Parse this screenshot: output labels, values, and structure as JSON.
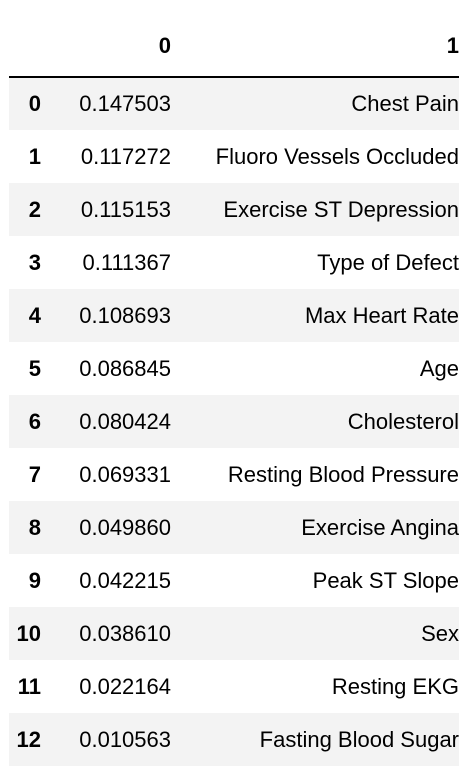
{
  "table": {
    "index_header": "",
    "columns": [
      "0",
      "1"
    ],
    "rows": [
      {
        "index": "0",
        "c0": "0.147503",
        "c1": "Chest Pain"
      },
      {
        "index": "1",
        "c0": "0.117272",
        "c1": "Fluoro Vessels Occluded"
      },
      {
        "index": "2",
        "c0": "0.115153",
        "c1": "Exercise ST Depression"
      },
      {
        "index": "3",
        "c0": "0.111367",
        "c1": "Type of Defect"
      },
      {
        "index": "4",
        "c0": "0.108693",
        "c1": "Max Heart Rate"
      },
      {
        "index": "5",
        "c0": "0.086845",
        "c1": "Age"
      },
      {
        "index": "6",
        "c0": "0.080424",
        "c1": "Cholesterol"
      },
      {
        "index": "7",
        "c0": "0.069331",
        "c1": "Resting Blood Pressure"
      },
      {
        "index": "8",
        "c0": "0.049860",
        "c1": "Exercise Angina"
      },
      {
        "index": "9",
        "c0": "0.042215",
        "c1": "Peak ST Slope"
      },
      {
        "index": "10",
        "c0": "0.038610",
        "c1": "Sex"
      },
      {
        "index": "11",
        "c0": "0.022164",
        "c1": "Resting EKG"
      },
      {
        "index": "12",
        "c0": "0.010563",
        "c1": "Fasting Blood Sugar"
      }
    ]
  },
  "colors": {
    "stripe": "#f3f3f3",
    "header_rule": "#000000"
  }
}
